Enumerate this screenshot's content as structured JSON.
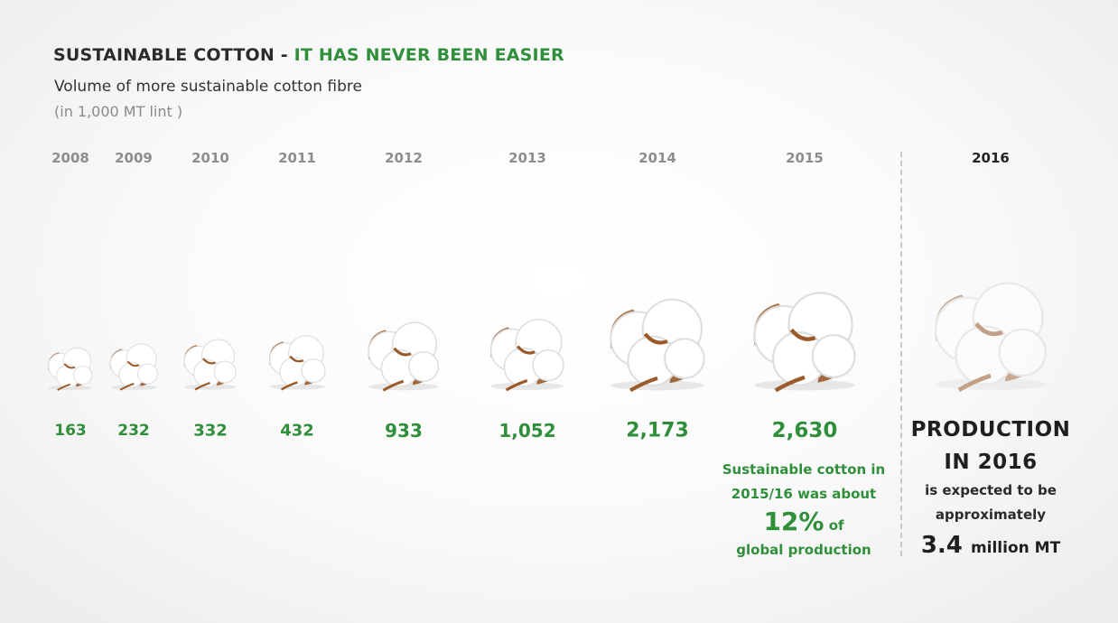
{
  "header": {
    "title_main": "SUSTAINABLE COTTON - ",
    "title_accent": "IT HAS NEVER BEEN EASIER",
    "subtitle": "Volume of more sustainable cotton fibre",
    "unit": "(in 1,000 MT lint )"
  },
  "chart_data": {
    "type": "bar",
    "title": "SUSTAINABLE COTTON - IT HAS NEVER BEEN EASIER",
    "subtitle": "Volume of more sustainable cotton fibre",
    "ylabel": "(in 1,000 MT lint )",
    "categories": [
      "2008",
      "2009",
      "2010",
      "2011",
      "2012",
      "2013",
      "2014",
      "2015"
    ],
    "values": [
      163,
      232,
      332,
      432,
      933,
      1052,
      2173,
      2630
    ],
    "value_labels": [
      "163",
      "232",
      "332",
      "432",
      "933",
      "1,052",
      "2,173",
      "2,630"
    ],
    "projection": {
      "category": "2016",
      "value": 3400,
      "label": "3.4 million MT"
    },
    "marker": "cotton-boll",
    "grid": false
  },
  "annotation": {
    "line1": "Sustainable cotton in",
    "line2": "2015/16 was about",
    "percent": "12%",
    "of": "of",
    "line4": "global production"
  },
  "projection_block": {
    "year": "2016",
    "headline_line1": "PRODUCTION",
    "headline_line2": "IN 2016",
    "text_line1": "is expected to be",
    "text_line2": "approximately",
    "value": "3.4",
    "unit": "million MT"
  },
  "colors": {
    "accent_green": "#2f8f3a",
    "title_dark": "#2b2b2b",
    "year_grey": "#8d8d8d",
    "boll_brown": "#9a5a2a",
    "fibre_white": "#ffffff"
  }
}
